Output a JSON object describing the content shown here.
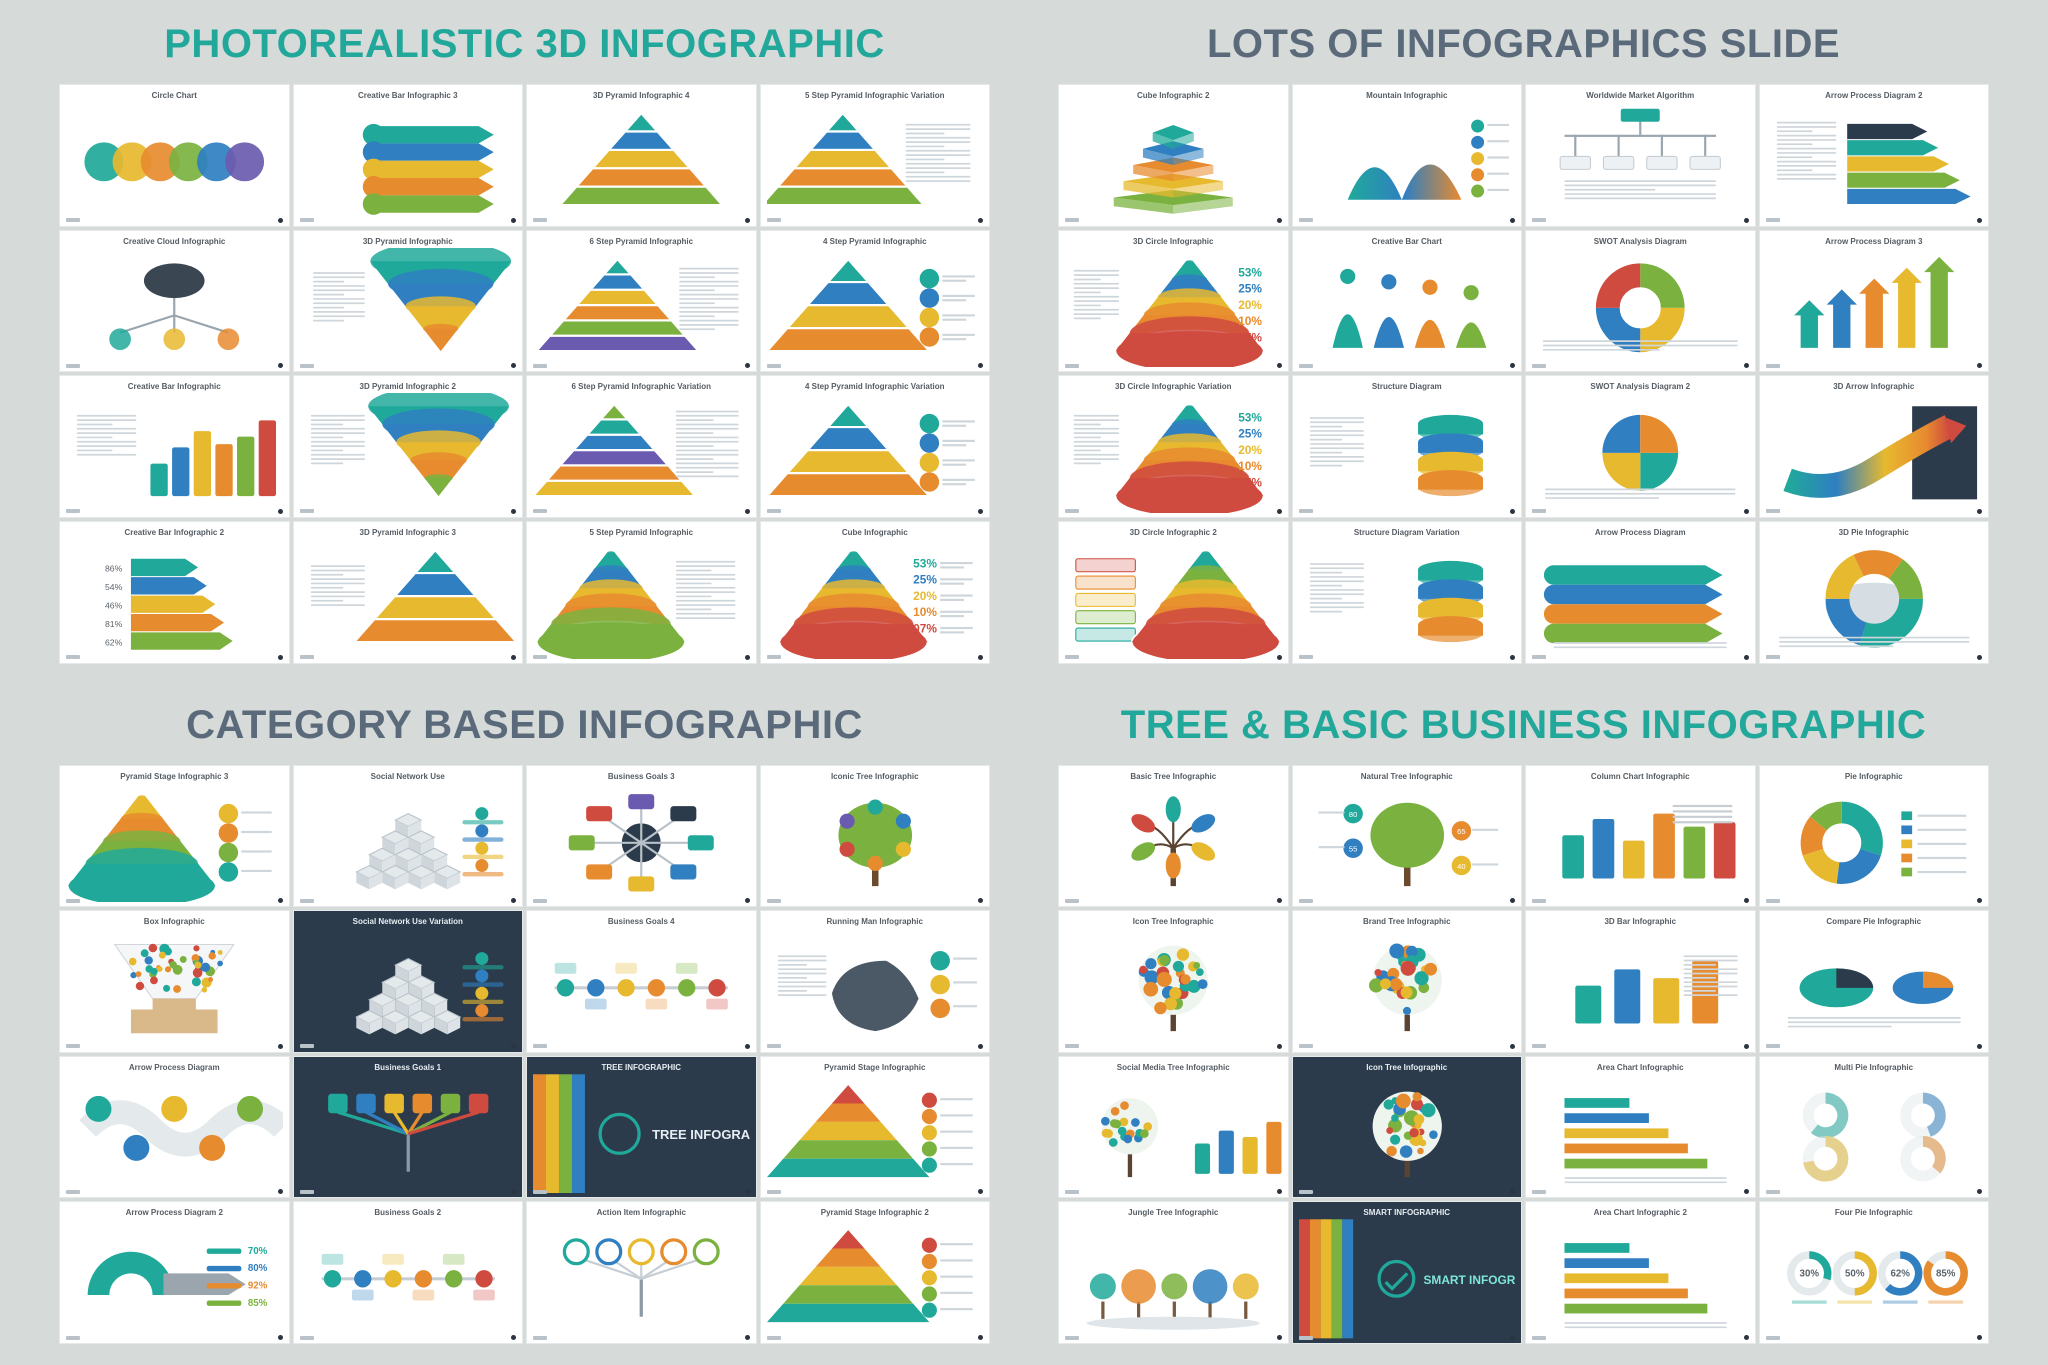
{
  "page_bg": "#d6dad8",
  "thumb_bg": "#ffffff",
  "dark_bg": "#2b3b4b",
  "heading_color_teal": "#22a79b",
  "heading_color_slate": "#5b6a7a",
  "heading_fontsize": 40,
  "thumb_title_fontsize": 8,
  "thumb_title_color": "#555c63",
  "palette": {
    "teal": "#20a99a",
    "blue": "#2f7fc1",
    "orange": "#e78b2f",
    "yellow": "#e7b92f",
    "green": "#7bb23f",
    "red": "#cf4a3f",
    "purple": "#6b5bb0",
    "navy": "#2b3b4b",
    "grey": "#9aa5ad"
  },
  "sections": [
    {
      "id": "photorealistic",
      "title": "PHOTOREALISTIC 3D INFOGRAPHIC",
      "title_color": "#22a79b",
      "thumbnails": [
        {
          "title": "Circle Chart",
          "preview": "circles5",
          "dark": false
        },
        {
          "title": "Creative Bar Infographic 3",
          "preview": "arrowbars",
          "dark": false
        },
        {
          "title": "3D Pyramid Infographic 4",
          "preview": "pyramid5",
          "dark": false
        },
        {
          "title": "5 Step Pyramid Infographic Variation",
          "preview": "pyramid5_side",
          "dark": false
        },
        {
          "title": "Creative Cloud Infographic",
          "preview": "cloudtree",
          "dark": false
        },
        {
          "title": "3D Pyramid Infographic",
          "preview": "cone4",
          "dark": false
        },
        {
          "title": "6 Step Pyramid Infographic",
          "preview": "pyramid6",
          "dark": false
        },
        {
          "title": "4 Step Pyramid Infographic",
          "preview": "pyramid4_dots",
          "dark": false
        },
        {
          "title": "Creative Bar Infographic",
          "preview": "bars3d",
          "dark": false
        },
        {
          "title": "3D Pyramid Infographic 2",
          "preview": "cone5",
          "dark": false
        },
        {
          "title": "6 Step Pyramid Infographic Variation",
          "preview": "pyramid6_side",
          "dark": false
        },
        {
          "title": "4 Step Pyramid Infographic Variation",
          "preview": "pyramid4_dots2",
          "dark": false
        },
        {
          "title": "Creative Bar Infographic 2",
          "preview": "arrowbars_pct",
          "dark": false
        },
        {
          "title": "3D Pyramid Infographic 3",
          "preview": "pyramid4_3d",
          "dark": false
        },
        {
          "title": "5 Step Pyramid Infographic",
          "preview": "pyramid5_flat",
          "dark": false
        },
        {
          "title": "Cube Infographic",
          "preview": "cube_stats",
          "dark": false
        }
      ]
    },
    {
      "id": "lots",
      "title": "LOTS OF INFOGRAPHICS SLIDE",
      "title_color": "#5b6a7a",
      "thumbnails": [
        {
          "title": "Cube Infographic 2",
          "preview": "cubestack",
          "dark": false
        },
        {
          "title": "Mountain Infographic",
          "preview": "mountain_stats",
          "dark": false
        },
        {
          "title": "Worldwide Market Algorithm",
          "preview": "bracket",
          "dark": false
        },
        {
          "title": "Arrow Process Diagram 2",
          "preview": "arrows_right",
          "dark": false
        },
        {
          "title": "3D Circle Infographic",
          "preview": "ringstack_pct",
          "dark": false
        },
        {
          "title": "Creative Bar Chart",
          "preview": "cones_up",
          "dark": false
        },
        {
          "title": "SWOT Analysis Diagram",
          "preview": "swot_circle",
          "dark": false
        },
        {
          "title": "Arrow Process Diagram 3",
          "preview": "arrows_up",
          "dark": false
        },
        {
          "title": "3D Circle Infographic Variation",
          "preview": "ringstack2",
          "dark": false
        },
        {
          "title": "Structure Diagram",
          "preview": "cylinder",
          "dark": false
        },
        {
          "title": "SWOT Analysis Diagram 2",
          "preview": "swot_quad",
          "dark": false
        },
        {
          "title": "3D Arrow Infographic",
          "preview": "arrow_curve_dark",
          "dark": false
        },
        {
          "title": "3D Circle Infographic 2",
          "preview": "ringstack_side",
          "dark": false
        },
        {
          "title": "Structure Diagram Variation",
          "preview": "cylinder2",
          "dark": false
        },
        {
          "title": "Arrow Process Diagram",
          "preview": "arrow_bars",
          "dark": false
        },
        {
          "title": "3D Pie Infographic",
          "preview": "pie3d",
          "dark": false
        }
      ]
    },
    {
      "id": "category",
      "title": "CATEGORY BASED INFOGRAPHIC",
      "title_color": "#5b6a7a",
      "thumbnails": [
        {
          "title": "Pyramid Stage Infographic 3",
          "preview": "ringcone",
          "dark": false
        },
        {
          "title": "Social Network Use",
          "preview": "cubes_grid",
          "dark": false
        },
        {
          "title": "Business Goals 3",
          "preview": "hub_nodes",
          "dark": false
        },
        {
          "title": "Iconic Tree Infographic",
          "preview": "tree_icons",
          "dark": false
        },
        {
          "title": "Box Infographic",
          "preview": "funnel_box",
          "dark": false
        },
        {
          "title": "Social Network Use Variation",
          "preview": "cubes_grid",
          "dark": true
        },
        {
          "title": "Business Goals 4",
          "preview": "timeline",
          "dark": false
        },
        {
          "title": "Running Man Infographic",
          "preview": "runner",
          "dark": false
        },
        {
          "title": "Arrow Process Diagram",
          "preview": "snake_arrows",
          "dark": false
        },
        {
          "title": "Business Goals 1",
          "preview": "tree_bars",
          "dark": true
        },
        {
          "title": "TREE INFOGRAPHIC",
          "preview": "banner_tree",
          "dark": true,
          "banner_text": "TREE INFOGRAPHIC"
        },
        {
          "title": "Pyramid Stage Infographic",
          "preview": "pyramid_slice",
          "dark": false
        },
        {
          "title": "Arrow Process Diagram 2",
          "preview": "ribbon_pct",
          "dark": false
        },
        {
          "title": "Business Goals 2",
          "preview": "timeline2",
          "dark": false
        },
        {
          "title": "Action Item Infographic",
          "preview": "tree_5items",
          "dark": false
        },
        {
          "title": "Pyramid Stage Infographic 2",
          "preview": "pyramid_slice2",
          "dark": false
        }
      ]
    },
    {
      "id": "tree",
      "title": "TREE & BASIC BUSINESS INFOGRAPHIC",
      "title_color": "#22a79b",
      "thumbnails": [
        {
          "title": "Basic Tree Infographic",
          "preview": "tree_leaves",
          "dark": false
        },
        {
          "title": "Natural Tree Infographic",
          "preview": "tree_labels",
          "dark": false
        },
        {
          "title": "Column Chart Infographic",
          "preview": "columns",
          "dark": false
        },
        {
          "title": "Pie Infographic",
          "preview": "donut",
          "dark": false
        },
        {
          "title": "Icon Tree Infographic",
          "preview": "tree_round",
          "dark": false
        },
        {
          "title": "Brand Tree Infographic",
          "preview": "tree_dots",
          "dark": false
        },
        {
          "title": "3D Bar Infographic",
          "preview": "bars3d_small",
          "dark": false
        },
        {
          "title": "Compare Pie Infographic",
          "preview": "pie_compare",
          "dark": false
        },
        {
          "title": "Social Media Tree Infographic",
          "preview": "tree_social",
          "dark": false
        },
        {
          "title": "Icon Tree Infographic",
          "preview": "tree_round",
          "dark": true
        },
        {
          "title": "Area Chart Infographic",
          "preview": "hbars",
          "dark": false
        },
        {
          "title": "Multi Pie Infographic",
          "preview": "pies4",
          "dark": false
        },
        {
          "title": "Jungle Tree Infographic",
          "preview": "trees_row",
          "dark": false
        },
        {
          "title": "SMART INFOGRAPHIC",
          "preview": "banner_smart",
          "dark": true,
          "banner_text": "SMART INFOGRAPHIC"
        },
        {
          "title": "Area Chart Infographic 2",
          "preview": "hbars2",
          "dark": false
        },
        {
          "title": "Four Pie Infographic",
          "preview": "rings4",
          "dark": false
        }
      ]
    }
  ],
  "stats_percents": [
    "53%",
    "25%",
    "20%",
    "10%",
    "07%"
  ],
  "stats_colors": [
    "#20a99a",
    "#2f7fc1",
    "#e7b92f",
    "#e78b2f",
    "#cf4a3f"
  ],
  "ribbon_pct": [
    "70%",
    "80%",
    "92%",
    "85%"
  ],
  "rings4_pct": [
    "30%",
    "50%",
    "62%",
    "85%"
  ],
  "rings4_colors": [
    "#20a99a",
    "#e7b92f",
    "#2f7fc1",
    "#e78b2f"
  ],
  "tree_label_pct": [
    "80",
    "65",
    "55",
    "40"
  ]
}
